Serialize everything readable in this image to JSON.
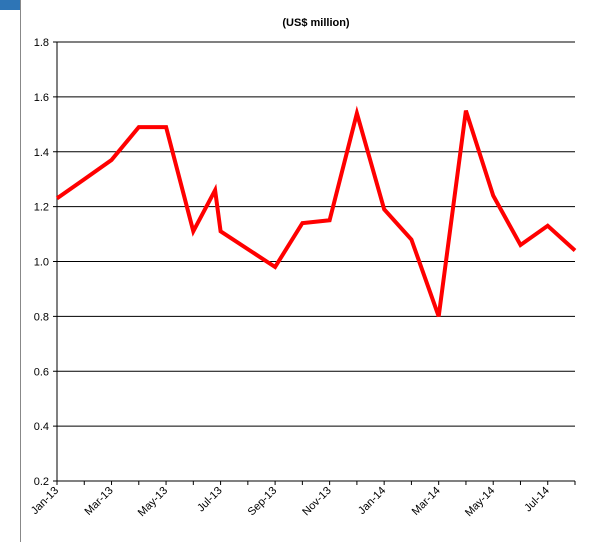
{
  "chart_data": {
    "type": "line",
    "title": "(US$ million)",
    "xlabel": "",
    "ylabel": "",
    "ylim": [
      0.2,
      1.8
    ],
    "y_ticks": [
      "0.2",
      "0.4",
      "0.6",
      "0.8",
      "1.0",
      "1.2",
      "1.4",
      "1.6",
      "1.8"
    ],
    "x": [
      "Jan-13",
      "Feb-13",
      "Mar-13",
      "Apr-13",
      "May-13",
      "Jun-13",
      "Jul-13",
      "Aug-13",
      "Sep-13",
      "Oct-13",
      "Nov-13",
      "Dec-13",
      "Jan-14",
      "Feb-14",
      "Mar-14",
      "Apr-14",
      "May-14",
      "Jun-14",
      "Jul-14",
      "Aug-14"
    ],
    "x_tick_labels": [
      "Jan-13",
      "Mar-13",
      "May-13",
      "Jul-13",
      "Sep-13",
      "Nov-13",
      "Jan-14",
      "Mar-14",
      "May-14",
      "Jul-14"
    ],
    "series": [
      {
        "color": "#ff0000",
        "points": [
          {
            "x": "Jan-13",
            "y": 1.23
          },
          {
            "x": "Feb-13",
            "y": 1.3
          },
          {
            "x": "Mar-13",
            "y": 1.37
          },
          {
            "x": "Apr-13",
            "y": 1.49
          },
          {
            "x": "May-13",
            "y": 1.49
          },
          {
            "x": "Jun-13",
            "y": 1.11
          },
          {
            "x": "Jun-13 late",
            "y": 1.26
          },
          {
            "x": "Jul-13",
            "y": 1.11
          },
          {
            "x": "Sep-13",
            "y": 0.98
          },
          {
            "x": "Oct-13",
            "y": 1.14
          },
          {
            "x": "Nov-13",
            "y": 1.15
          },
          {
            "x": "Dec-13",
            "y": 1.54
          },
          {
            "x": "Jan-14",
            "y": 1.19
          },
          {
            "x": "Feb-14",
            "y": 1.08
          },
          {
            "x": "Mar-14",
            "y": 0.8
          },
          {
            "x": "Apr-14",
            "y": 1.55
          },
          {
            "x": "May-14",
            "y": 1.24
          },
          {
            "x": "Jun-14",
            "y": 1.06
          },
          {
            "x": "Jul-14",
            "y": 1.13
          },
          {
            "x": "Aug-14",
            "y": 1.04
          }
        ]
      }
    ],
    "grid": true,
    "legend": "none"
  }
}
